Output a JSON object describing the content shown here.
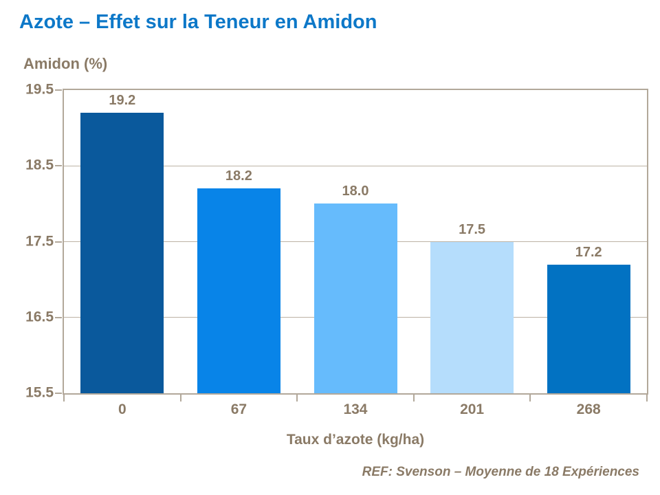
{
  "header": {
    "title": "Azote – Effet sur la Teneur en Amidon"
  },
  "chart_data": {
    "type": "bar",
    "title": "Azote – Effet sur la Teneur en Amidon",
    "ylabel": "Amidon (%)",
    "xlabel": "Taux d’azote (kg/ha)",
    "categories": [
      "0",
      "67",
      "134",
      "201",
      "268"
    ],
    "values": [
      19.2,
      18.2,
      18.0,
      17.5,
      17.2
    ],
    "data_labels": [
      "19.2",
      "18.2",
      "18.0",
      "17.5",
      "17.2"
    ],
    "bar_colors": [
      "#0a599c",
      "#0884e8",
      "#66bbfc",
      "#b5ddfc",
      "#0272c2"
    ],
    "ylim": [
      15.5,
      19.5
    ],
    "yticks": [
      "19.5",
      "18.5",
      "17.5",
      "16.5",
      "15.5"
    ],
    "grid": true,
    "legend": "none"
  },
  "footer": {
    "reference": "REF: Svenson – Moyenne de 18 Expériences"
  },
  "colors": {
    "title_text": "#0d78c8",
    "label_text": "#8a7a66",
    "frame": "#b2a89a",
    "gridline": "#bcb2a4",
    "background": "#ffffff"
  }
}
